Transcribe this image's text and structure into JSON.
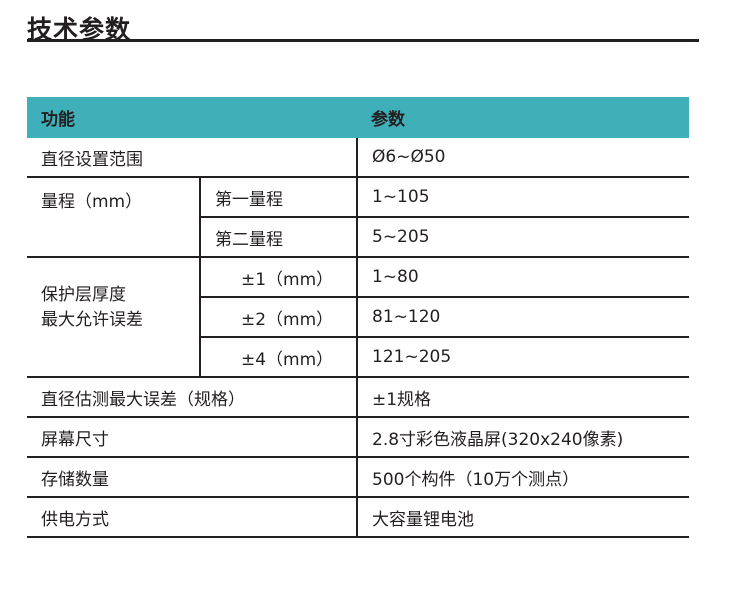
{
  "title": "技术参数",
  "header": {
    "function": "功能",
    "params": "参数"
  },
  "rows": {
    "diameter_range": {
      "label": "直径设置范围",
      "value": "Ø6~Ø50"
    },
    "range": {
      "label": "量程（mm）",
      "first": "第一量程",
      "first_value": "1~105",
      "second": "第二量程",
      "second_value": "5~205"
    },
    "cover": {
      "label_line1": "保护层厚度",
      "label_line2": "最大允许误差",
      "items": [
        {
          "label": "±1（mm）",
          "value": "1~80"
        },
        {
          "label": "±2（mm）",
          "value": "81~120"
        },
        {
          "label": "±4（mm）",
          "value": "121~205"
        }
      ]
    },
    "diameter_error": {
      "label": "直径估测最大误差（规格）",
      "value": "±1规格"
    },
    "screen": {
      "label": "屏幕尺寸",
      "value": "2.8寸彩色液晶屏(320x240像素)"
    },
    "storage": {
      "label": "存储数量",
      "value": "500个构件（10万个测点）"
    },
    "power": {
      "label": "供电方式",
      "value": "大容量锂电池"
    }
  }
}
